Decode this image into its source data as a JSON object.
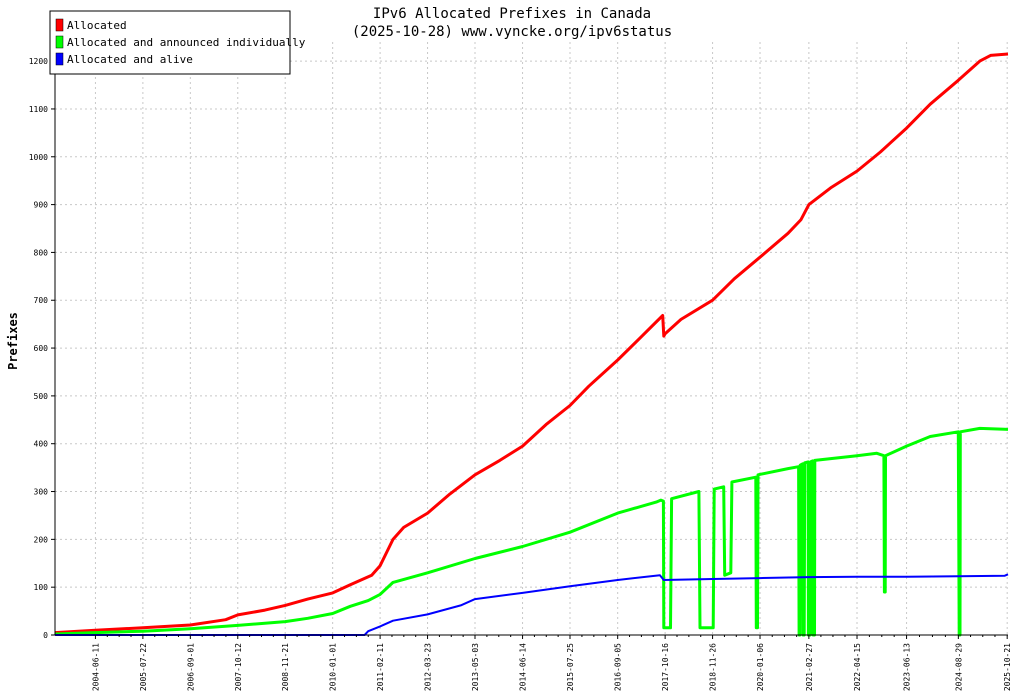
{
  "chart_data": {
    "type": "line",
    "title": "IPv6 Allocated Prefixes in Canada",
    "subtitle": "(2025-10-28) www.vyncke.org/ipv6status",
    "xlabel": "",
    "ylabel": "Prefixes",
    "ylim": [
      0,
      1240
    ],
    "xlim": [
      "2003-07-01",
      "2025-10-28"
    ],
    "y_ticks": [
      0,
      100,
      200,
      300,
      400,
      500,
      600,
      700,
      800,
      900,
      1000,
      1100,
      1200
    ],
    "x_ticks": [
      "2004-06-11",
      "2005-07-22",
      "2006-09-01",
      "2007-10-12",
      "2008-11-21",
      "2010-01-01",
      "2011-02-11",
      "2012-03-23",
      "2013-05-03",
      "2014-06-14",
      "2015-07-25",
      "2016-09-05",
      "2017-10-16",
      "2018-11-26",
      "2020-01-06",
      "2021-02-27",
      "2022-04-15",
      "2023-06-13",
      "2024-08-29",
      "2025-10-21"
    ],
    "grid": true,
    "legend_position": "top-left",
    "series": [
      {
        "name": "Allocated",
        "color": "#ff0000",
        "points": [
          [
            "2003-07-01",
            5
          ],
          [
            "2004-06-11",
            10
          ],
          [
            "2005-07-22",
            15
          ],
          [
            "2006-09-01",
            21
          ],
          [
            "2007-07-01",
            32
          ],
          [
            "2007-10-12",
            42
          ],
          [
            "2008-06-01",
            52
          ],
          [
            "2008-11-21",
            62
          ],
          [
            "2009-06-01",
            75
          ],
          [
            "2010-01-01",
            88
          ],
          [
            "2010-06-01",
            105
          ],
          [
            "2010-12-01",
            125
          ],
          [
            "2011-02-11",
            145
          ],
          [
            "2011-06-01",
            200
          ],
          [
            "2011-09-01",
            225
          ],
          [
            "2012-03-23",
            255
          ],
          [
            "2012-10-01",
            295
          ],
          [
            "2013-05-03",
            335
          ],
          [
            "2013-12-01",
            365
          ],
          [
            "2014-06-14",
            395
          ],
          [
            "2015-01-01",
            440
          ],
          [
            "2015-07-25",
            480
          ],
          [
            "2016-01-01",
            520
          ],
          [
            "2016-09-05",
            575
          ],
          [
            "2017-04-01",
            625
          ],
          [
            "2017-09-25",
            668
          ],
          [
            "2017-10-05",
            625
          ],
          [
            "2017-10-16",
            630
          ],
          [
            "2018-03-01",
            660
          ],
          [
            "2018-11-26",
            700
          ],
          [
            "2019-06-01",
            745
          ],
          [
            "2020-01-06",
            790
          ],
          [
            "2020-09-01",
            840
          ],
          [
            "2020-12-20",
            868
          ],
          [
            "2021-02-27",
            900
          ],
          [
            "2021-09-01",
            935
          ],
          [
            "2022-04-15",
            970
          ],
          [
            "2022-11-01",
            1010
          ],
          [
            "2023-06-13",
            1060
          ],
          [
            "2024-01-01",
            1110
          ],
          [
            "2024-08-29",
            1160
          ],
          [
            "2025-03-01",
            1200
          ],
          [
            "2025-06-01",
            1212
          ],
          [
            "2025-10-28",
            1215
          ]
        ]
      },
      {
        "name": "Allocated and announced individually",
        "color": "#00ff00",
        "points": [
          [
            "2003-07-01",
            2
          ],
          [
            "2004-06-11",
            5
          ],
          [
            "2005-07-22",
            8
          ],
          [
            "2006-09-01",
            13
          ],
          [
            "2007-10-12",
            20
          ],
          [
            "2008-11-21",
            28
          ],
          [
            "2009-06-01",
            35
          ],
          [
            "2010-01-01",
            45
          ],
          [
            "2010-06-01",
            60
          ],
          [
            "2010-11-01",
            72
          ],
          [
            "2011-02-11",
            85
          ],
          [
            "2011-06-01",
            110
          ],
          [
            "2012-03-23",
            130
          ],
          [
            "2013-05-03",
            160
          ],
          [
            "2014-06-14",
            185
          ],
          [
            "2015-07-25",
            215
          ],
          [
            "2016-09-05",
            255
          ],
          [
            "2017-08-01",
            278
          ],
          [
            "2017-09-10",
            282
          ],
          [
            "2017-10-01",
            280
          ],
          [
            "2017-10-05",
            15
          ],
          [
            "2017-12-01",
            15
          ],
          [
            "2017-12-10",
            285
          ],
          [
            "2018-08-01",
            300
          ],
          [
            "2018-08-10",
            15
          ],
          [
            "2018-12-01",
            15
          ],
          [
            "2018-12-10",
            305
          ],
          [
            "2019-03-01",
            310
          ],
          [
            "2019-03-10",
            125
          ],
          [
            "2019-05-01",
            130
          ],
          [
            "2019-05-10",
            320
          ],
          [
            "2019-12-01",
            330
          ],
          [
            "2019-12-05",
            15
          ],
          [
            "2019-12-15",
            15
          ],
          [
            "2019-12-20",
            335
          ],
          [
            "2020-09-01",
            348
          ],
          [
            "2020-12-01",
            352
          ],
          [
            "2020-12-05",
            0
          ],
          [
            "2020-12-12",
            0
          ],
          [
            "2020-12-15",
            355
          ],
          [
            "2021-01-05",
            358
          ],
          [
            "2021-01-08",
            0
          ],
          [
            "2021-01-18",
            0
          ],
          [
            "2021-01-22",
            360
          ],
          [
            "2021-02-20",
            362
          ],
          [
            "2021-02-23",
            0
          ],
          [
            "2021-03-10",
            0
          ],
          [
            "2021-03-13",
            362
          ],
          [
            "2021-04-01",
            364
          ],
          [
            "2021-04-04",
            0
          ],
          [
            "2021-04-16",
            0
          ],
          [
            "2021-04-19",
            365
          ],
          [
            "2022-04-15",
            375
          ],
          [
            "2022-10-01",
            380
          ],
          [
            "2022-12-01",
            375
          ],
          [
            "2022-12-05",
            90
          ],
          [
            "2022-12-12",
            90
          ],
          [
            "2022-12-15",
            375
          ],
          [
            "2023-06-13",
            395
          ],
          [
            "2024-01-01",
            415
          ],
          [
            "2024-08-29",
            425
          ],
          [
            "2024-09-05",
            0
          ],
          [
            "2024-09-12",
            0
          ],
          [
            "2024-09-15",
            425
          ],
          [
            "2025-03-01",
            432
          ],
          [
            "2025-10-28",
            430
          ]
        ]
      },
      {
        "name": "Allocated and alive",
        "color": "#0000ff",
        "points": [
          [
            "2003-07-01",
            0
          ],
          [
            "2010-10-01",
            0
          ],
          [
            "2010-11-01",
            8
          ],
          [
            "2011-02-11",
            18
          ],
          [
            "2011-06-01",
            30
          ],
          [
            "2012-03-23",
            43
          ],
          [
            "2013-01-01",
            62
          ],
          [
            "2013-05-03",
            75
          ],
          [
            "2014-06-14",
            88
          ],
          [
            "2015-07-25",
            102
          ],
          [
            "2016-09-05",
            115
          ],
          [
            "2017-09-01",
            125
          ],
          [
            "2017-10-05",
            115
          ],
          [
            "2018-11-26",
            117
          ],
          [
            "2020-01-06",
            119
          ],
          [
            "2021-02-27",
            121
          ],
          [
            "2022-04-15",
            122
          ],
          [
            "2023-06-13",
            122
          ],
          [
            "2024-08-29",
            123
          ],
          [
            "2025-10-01",
            124
          ],
          [
            "2025-10-28",
            127
          ]
        ]
      }
    ]
  }
}
